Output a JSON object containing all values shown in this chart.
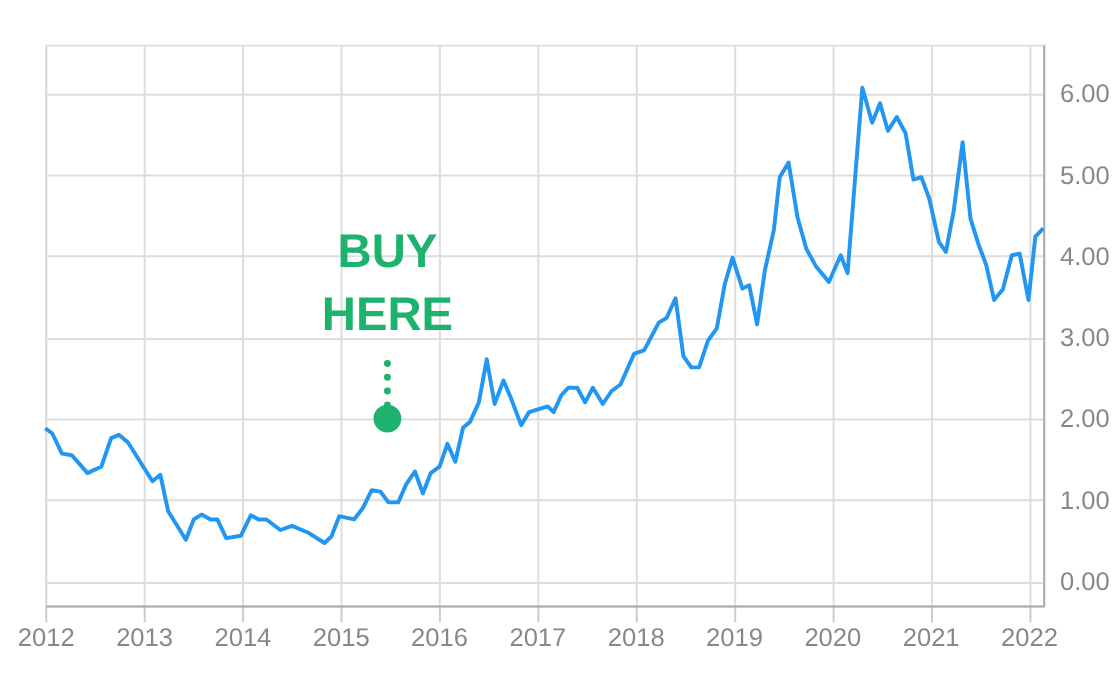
{
  "chart_data": {
    "type": "line",
    "x": [
      2012.0,
      2012.07,
      2012.17,
      2012.27,
      2012.43,
      2012.57,
      2012.67,
      2012.75,
      2012.84,
      2013.09,
      2013.17,
      2013.25,
      2013.43,
      2013.51,
      2013.59,
      2013.68,
      2013.75,
      2013.84,
      2013.99,
      2014.09,
      2014.17,
      2014.25,
      2014.39,
      2014.51,
      2014.67,
      2014.84,
      2014.91,
      2014.99,
      2015.14,
      2015.23,
      2015.32,
      2015.41,
      2015.49,
      2015.59,
      2015.67,
      2015.76,
      2015.84,
      2015.92,
      2016.01,
      2016.09,
      2016.17,
      2016.25,
      2016.32,
      2016.41,
      2016.49,
      2016.57,
      2016.66,
      2016.74,
      2016.84,
      2016.92,
      2017.11,
      2017.17,
      2017.25,
      2017.32,
      2017.41,
      2017.49,
      2017.57,
      2017.67,
      2017.76,
      2017.85,
      2017.99,
      2018.09,
      2018.24,
      2018.32,
      2018.41,
      2018.49,
      2018.57,
      2018.65,
      2018.74,
      2018.83,
      2018.91,
      2018.99,
      2019.09,
      2019.16,
      2019.24,
      2019.32,
      2019.41,
      2019.47,
      2019.56,
      2019.65,
      2019.74,
      2019.84,
      2019.97,
      2020.09,
      2020.16,
      2020.24,
      2020.31,
      2020.41,
      2020.49,
      2020.57,
      2020.66,
      2020.75,
      2020.83,
      2020.91,
      2020.99,
      2021.09,
      2021.16,
      2021.24,
      2021.33,
      2021.41,
      2021.49,
      2021.57,
      2021.65,
      2021.74,
      2021.83,
      2021.91,
      2022.0,
      2022.07,
      2022.15
    ],
    "series": [
      {
        "color": "#2196f3",
        "values": [
          1.88,
          1.82,
          1.57,
          1.55,
          1.33,
          1.41,
          1.76,
          1.8,
          1.71,
          1.23,
          1.31,
          0.86,
          0.51,
          0.76,
          0.82,
          0.76,
          0.76,
          0.53,
          0.56,
          0.81,
          0.76,
          0.76,
          0.63,
          0.68,
          0.6,
          0.47,
          0.55,
          0.8,
          0.76,
          0.9,
          1.12,
          1.1,
          0.97,
          0.97,
          1.19,
          1.35,
          1.08,
          1.33,
          1.41,
          1.69,
          1.47,
          1.89,
          1.96,
          2.2,
          2.73,
          2.18,
          2.47,
          2.24,
          1.92,
          2.08,
          2.15,
          2.08,
          2.29,
          2.38,
          2.38,
          2.2,
          2.38,
          2.18,
          2.34,
          2.42,
          2.8,
          2.84,
          3.18,
          3.24,
          3.48,
          2.77,
          2.63,
          2.63,
          2.96,
          3.11,
          3.65,
          3.98,
          3.6,
          3.64,
          3.16,
          3.83,
          4.32,
          4.97,
          5.15,
          4.48,
          4.09,
          3.87,
          3.68,
          4.01,
          3.79,
          5.01,
          6.07,
          5.64,
          5.88,
          5.54,
          5.71,
          5.51,
          4.94,
          4.97,
          4.71,
          4.17,
          4.05,
          4.56,
          5.4,
          4.46,
          4.15,
          3.89,
          3.46,
          3.59,
          4.01,
          4.03,
          3.46,
          4.24,
          4.34
        ]
      }
    ],
    "xlim": [
      2012.0,
      2022.15
    ],
    "xticks": [
      2012,
      2013,
      2014,
      2015,
      2016,
      2017,
      2018,
      2019,
      2020,
      2021,
      2022
    ],
    "ylim": [
      -0.3,
      6.6
    ],
    "yticks": [
      {
        "value": 0,
        "label": "0.00"
      },
      {
        "value": 1,
        "label": "1.00"
      },
      {
        "value": 2,
        "label": "2.00"
      },
      {
        "value": 3,
        "label": "3.00"
      },
      {
        "value": 4,
        "label": "4.00"
      },
      {
        "value": 5,
        "label": "5.00"
      },
      {
        "value": 6,
        "label": "6.00"
      }
    ],
    "grid": true,
    "legend": false,
    "marker": "none",
    "line_style": "solid",
    "annotations": [
      {
        "text": "BUY HERE",
        "x": 2015.48,
        "y": 2.0
      }
    ]
  }
}
